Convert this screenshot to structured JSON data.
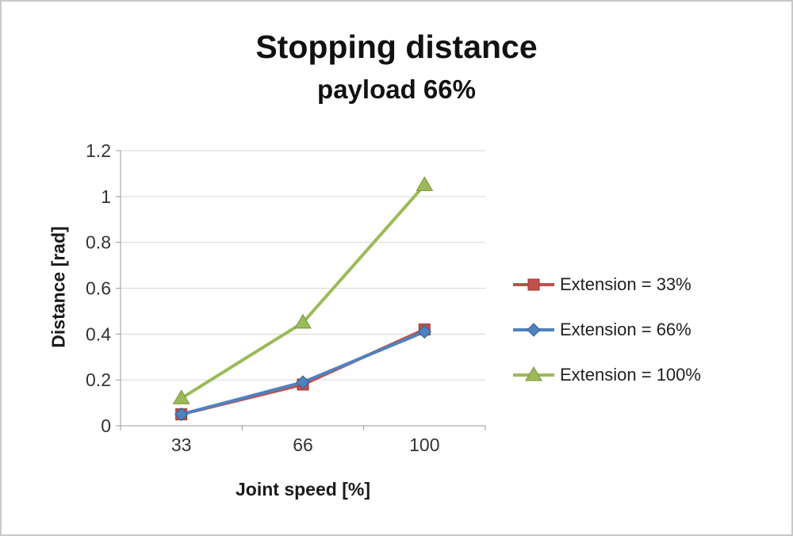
{
  "page": {
    "background": "#ffffff",
    "border_color": "#c9c9c9"
  },
  "chart_data": {
    "type": "line",
    "title": "Stopping distance",
    "subtitle": "payload 66%",
    "xlabel": "Joint speed [%]",
    "ylabel": "Distance [rad]",
    "categories": [
      "33",
      "66",
      "100"
    ],
    "series": [
      {
        "name": "Extension = 33%",
        "values": [
          0.05,
          0.18,
          0.42
        ],
        "color": "#c0504d",
        "edge": "#953735",
        "marker": "square"
      },
      {
        "name": "Extension = 66%",
        "values": [
          0.05,
          0.19,
          0.41
        ],
        "color": "#4f81bd",
        "edge": "#376092",
        "marker": "diamond"
      },
      {
        "name": "Extension = 100%",
        "values": [
          0.12,
          0.45,
          1.05
        ],
        "color": "#9bbb59",
        "edge": "#77933c",
        "marker": "triangle"
      }
    ],
    "ylim": [
      0,
      1.2
    ],
    "ytick_step": 0.2,
    "grid": true,
    "legend_position": "right",
    "axis_color": "#9b9b9b",
    "grid_color": "#d6d6d6",
    "text_color": "#333333"
  }
}
